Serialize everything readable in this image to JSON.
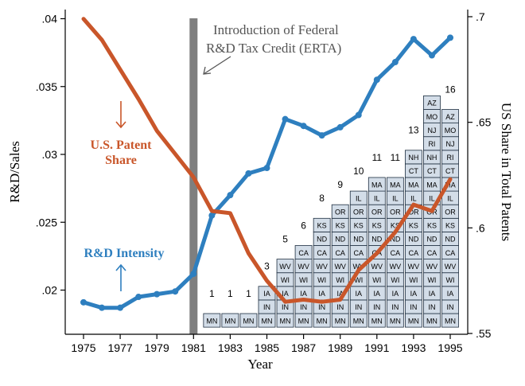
{
  "chart_data": {
    "type": "line",
    "xlabel": "Year",
    "ylabel_left": "R&D/Sales",
    "ylabel_right": "US Share in Total Patents",
    "x_ticks": [
      "1975",
      "1977",
      "1979",
      "1981",
      "1983",
      "1985",
      "1987",
      "1989",
      "1991",
      "1993",
      "1995"
    ],
    "y_left_ticks": [
      ".02",
      ".025",
      ".03",
      ".035",
      ".04"
    ],
    "y_right_ticks": [
      ".55",
      ".6",
      ".65",
      ".7"
    ],
    "ylim_left": [
      0.0175,
      0.0405
    ],
    "ylim_right": [
      0.55,
      0.7
    ],
    "xlim": [
      1974.5,
      1995.5
    ],
    "annotation": {
      "year": 1981,
      "line1": "Introduction of Federal",
      "line2": "R&D Tax Credit (ERTA)"
    },
    "series": [
      {
        "name": "R&D Intensity",
        "axis": "left",
        "color": "#2e7fbf",
        "x": [
          1975,
          1976,
          1977,
          1978,
          1979,
          1980,
          1981,
          1982,
          1983,
          1984,
          1985,
          1986,
          1987,
          1988,
          1989,
          1990,
          1991,
          1992,
          1993,
          1994,
          1995
        ],
        "y": [
          0.0191,
          0.0187,
          0.0187,
          0.0195,
          0.0197,
          0.0199,
          0.0212,
          0.0255,
          0.027,
          0.0286,
          0.029,
          0.0326,
          0.0321,
          0.0314,
          0.032,
          0.0329,
          0.0355,
          0.0368,
          0.0385,
          0.0373,
          0.0386
        ]
      },
      {
        "name": "U.S. Patent Share",
        "axis": "right",
        "color": "#c9562a",
        "x": [
          1975,
          1976,
          1977,
          1978,
          1979,
          1980,
          1981,
          1982,
          1983,
          1984,
          1985,
          1986,
          1987,
          1988,
          1989,
          1990,
          1991,
          1992,
          1993,
          1994,
          1995
        ],
        "y": [
          0.699,
          0.689,
          0.675,
          0.661,
          0.646,
          0.635,
          0.624,
          0.608,
          0.607,
          0.588,
          0.575,
          0.565,
          0.566,
          0.565,
          0.566,
          0.58,
          0.588,
          0.598,
          0.611,
          0.608,
          0.623
        ]
      }
    ],
    "labels": {
      "patent_share": [
        "U.S. Patent",
        "Share"
      ],
      "rd_intensity": "R&D Intensity"
    },
    "state_stacks": [
      {
        "year": 1982,
        "count": "1",
        "states": [
          "MN"
        ]
      },
      {
        "year": 1983,
        "count": "1",
        "states": [
          "MN"
        ]
      },
      {
        "year": 1984,
        "count": "1",
        "states": [
          "MN"
        ]
      },
      {
        "year": 1985,
        "count": "3",
        "states": [
          "MN",
          "IN",
          "IA"
        ]
      },
      {
        "year": 1986,
        "count": "5",
        "states": [
          "MN",
          "IN",
          "IA",
          "WI",
          "WV"
        ]
      },
      {
        "year": 1987,
        "count": "6",
        "states": [
          "MN",
          "IN",
          "IA",
          "WI",
          "WV",
          "CA"
        ]
      },
      {
        "year": 1988,
        "count": "8",
        "states": [
          "MN",
          "IN",
          "IA",
          "WI",
          "WV",
          "CA",
          "ND",
          "KS"
        ]
      },
      {
        "year": 1989,
        "count": "9",
        "states": [
          "MN",
          "IN",
          "IA",
          "WI",
          "WV",
          "CA",
          "ND",
          "KS",
          "OR"
        ]
      },
      {
        "year": 1990,
        "count": "10",
        "states": [
          "MN",
          "IN",
          "IA",
          "WI",
          "WV",
          "CA",
          "ND",
          "KS",
          "OR",
          "IL"
        ]
      },
      {
        "year": 1991,
        "count": "11",
        "states": [
          "MN",
          "IN",
          "IA",
          "WI",
          "WV",
          "CA",
          "ND",
          "KS",
          "OR",
          "IL",
          "MA"
        ]
      },
      {
        "year": 1992,
        "count": "11",
        "states": [
          "MN",
          "IN",
          "IA",
          "WI",
          "WV",
          "CA",
          "ND",
          "KS",
          "OR",
          "IL",
          "MA"
        ]
      },
      {
        "year": 1993,
        "count": "13",
        "states": [
          "MN",
          "IN",
          "IA",
          "WI",
          "WV",
          "CA",
          "ND",
          "KS",
          "OR",
          "IL",
          "MA",
          "CT",
          "NH"
        ]
      },
      {
        "year": 1994,
        "count": "",
        "states": [
          "MN",
          "IN",
          "IA",
          "WI",
          "WV",
          "CA",
          "ND",
          "KS",
          "OR",
          "IL",
          "MA",
          "CT",
          "NH",
          "RI",
          "NJ",
          "MO",
          "AZ"
        ]
      },
      {
        "year": 1995,
        "count": "16",
        "states": [
          "MN",
          "IN",
          "IA",
          "WI",
          "WV",
          "CA",
          "ND",
          "KS",
          "OR",
          "IL",
          "MA",
          "CT",
          "RI",
          "NJ",
          "MO",
          "AZ"
        ]
      }
    ],
    "colors": {
      "cell_fill": "#d3dde8",
      "cell_stroke": "#1f2f40",
      "erta_bar": "#7f7f7f",
      "arrow": "#555555"
    }
  }
}
